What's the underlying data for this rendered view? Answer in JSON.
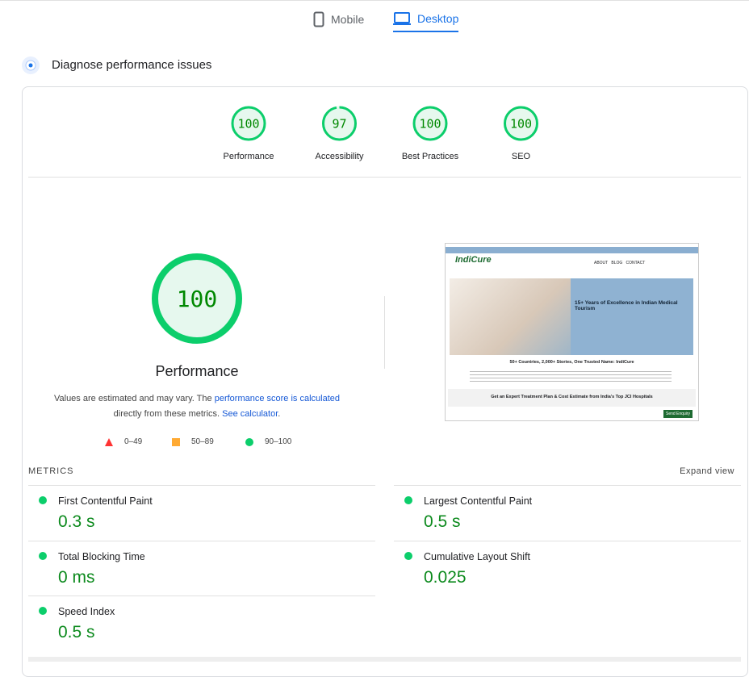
{
  "tabs": [
    "Mobile",
    "Desktop"
  ],
  "section_title": "Diagnose performance issues",
  "scores": [
    {
      "label": "Performance",
      "value": 100
    },
    {
      "label": "Accessibility",
      "value": 97
    },
    {
      "label": "Best Practices",
      "value": 100
    },
    {
      "label": "SEO",
      "value": 100
    }
  ],
  "main": {
    "value": 100,
    "label": "Performance",
    "note": [
      "Values are estimated and may vary. The ",
      "performance score is calculated",
      " directly from these metrics. ",
      "See calculator",
      "."
    ]
  },
  "legend": [
    "0–49",
    "50–89",
    "90–100"
  ],
  "thumbnail": {
    "brand": "IndiCure",
    "nav": [
      "ABOUT",
      "BLOG",
      "CONTACT"
    ],
    "hero": "15+ Years of Excellence in Indian Medical Tourism",
    "headline": "50+ Countries, 2,000+ Stories, One Trusted Name: IndiCure",
    "cta": "Get an Expert Treatment Plan & Cost Estimate from India's Top JCI Hospitals",
    "button": "Send Enquiry"
  },
  "metrics_title": "METRICS",
  "expand": "Expand view",
  "metrics": [
    {
      "name": "First Contentful Paint",
      "value": "0.3 s"
    },
    {
      "name": "Largest Contentful Paint",
      "value": "0.5 s"
    },
    {
      "name": "Total Blocking Time",
      "value": "0 ms"
    },
    {
      "name": "Cumulative Layout Shift",
      "value": "0.025"
    },
    {
      "name": "Speed Index",
      "value": "0.5 s"
    }
  ]
}
